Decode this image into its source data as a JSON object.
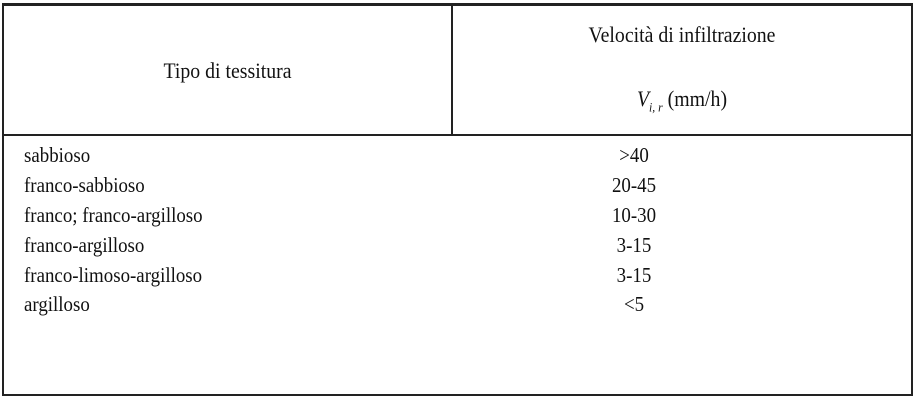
{
  "table": {
    "headers": {
      "col1": "Tipo di tessitura",
      "col2_line1": "Velocità di infiltrazione",
      "col2_symbol": "V",
      "col2_subscript": "i, r",
      "col2_unit": "(mm/h)"
    },
    "rows": [
      {
        "tipo": "sabbioso",
        "velocita": ">40"
      },
      {
        "tipo": "franco-sabbioso",
        "velocita": "20-45"
      },
      {
        "tipo": "franco; franco-argilloso",
        "velocita": "10-30"
      },
      {
        "tipo": "franco-argilloso",
        "velocita": "3-15"
      },
      {
        "tipo": "franco-limoso-argilloso",
        "velocita": "3-15"
      },
      {
        "tipo": "argilloso",
        "velocita": "<5"
      }
    ]
  }
}
